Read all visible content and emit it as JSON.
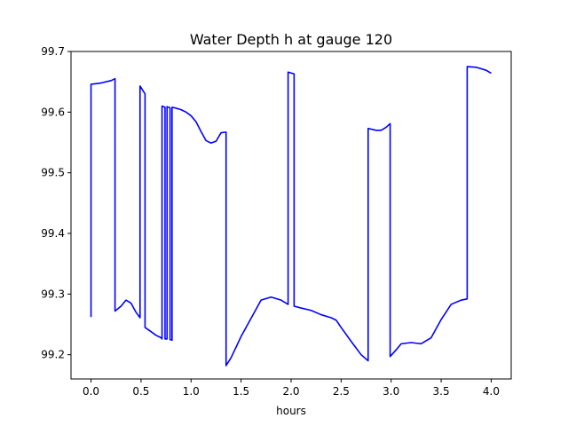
{
  "chart_data": {
    "type": "line",
    "title": "Water Depth h at gauge 120",
    "xlabel": "hours",
    "ylabel": "",
    "xlim": [
      -0.2,
      4.2
    ],
    "ylim": [
      99.16,
      99.7
    ],
    "xticks": [
      0.0,
      0.5,
      1.0,
      1.5,
      2.0,
      2.5,
      3.0,
      3.5,
      4.0
    ],
    "xtick_labels": [
      "0.0",
      "0.5",
      "1.0",
      "1.5",
      "2.0",
      "2.5",
      "3.0",
      "3.5",
      "4.0"
    ],
    "yticks": [
      99.2,
      99.3,
      99.4,
      99.5,
      99.6,
      99.7
    ],
    "ytick_labels": [
      "99.2",
      "99.3",
      "99.4",
      "99.5",
      "99.6",
      "99.7"
    ],
    "grid": false,
    "series": [
      {
        "color": "#0000ff",
        "x": [
          0.0,
          0.0,
          0.1,
          0.2,
          0.24,
          0.24,
          0.3,
          0.35,
          0.4,
          0.45,
          0.49,
          0.49,
          0.54,
          0.54,
          0.6,
          0.65,
          0.7,
          0.71,
          0.71,
          0.74,
          0.74,
          0.76,
          0.76,
          0.79,
          0.79,
          0.81,
          0.81,
          0.84,
          0.9,
          0.95,
          1.0,
          1.05,
          1.1,
          1.15,
          1.2,
          1.25,
          1.3,
          1.35,
          1.35,
          1.4,
          1.5,
          1.6,
          1.7,
          1.8,
          1.9,
          1.97,
          1.97,
          2.03,
          2.03,
          2.1,
          2.2,
          2.3,
          2.4,
          2.45,
          2.5,
          2.6,
          2.7,
          2.77,
          2.77,
          2.85,
          2.9,
          2.95,
          2.99,
          2.99,
          3.05,
          3.1,
          3.2,
          3.3,
          3.4,
          3.5,
          3.6,
          3.7,
          3.76,
          3.76,
          3.85,
          3.95,
          4.0
        ],
        "y": [
          99.262,
          99.646,
          99.648,
          99.652,
          99.655,
          99.272,
          99.28,
          99.29,
          99.285,
          99.27,
          99.261,
          99.643,
          99.63,
          99.245,
          99.238,
          99.232,
          99.228,
          99.226,
          99.61,
          99.608,
          99.226,
          99.226,
          99.609,
          99.607,
          99.225,
          99.224,
          99.608,
          99.607,
          99.604,
          99.6,
          99.594,
          99.584,
          99.568,
          99.553,
          99.549,
          99.552,
          99.566,
          99.567,
          99.182,
          99.195,
          99.23,
          99.26,
          99.29,
          99.295,
          99.29,
          99.283,
          99.666,
          99.663,
          99.28,
          99.277,
          99.273,
          99.266,
          99.261,
          99.257,
          99.245,
          99.222,
          99.2,
          99.19,
          99.573,
          99.57,
          99.57,
          99.575,
          99.581,
          99.197,
          99.208,
          99.218,
          99.22,
          99.218,
          99.228,
          99.258,
          99.283,
          99.29,
          99.292,
          99.675,
          99.674,
          99.669,
          99.664
        ]
      }
    ]
  }
}
